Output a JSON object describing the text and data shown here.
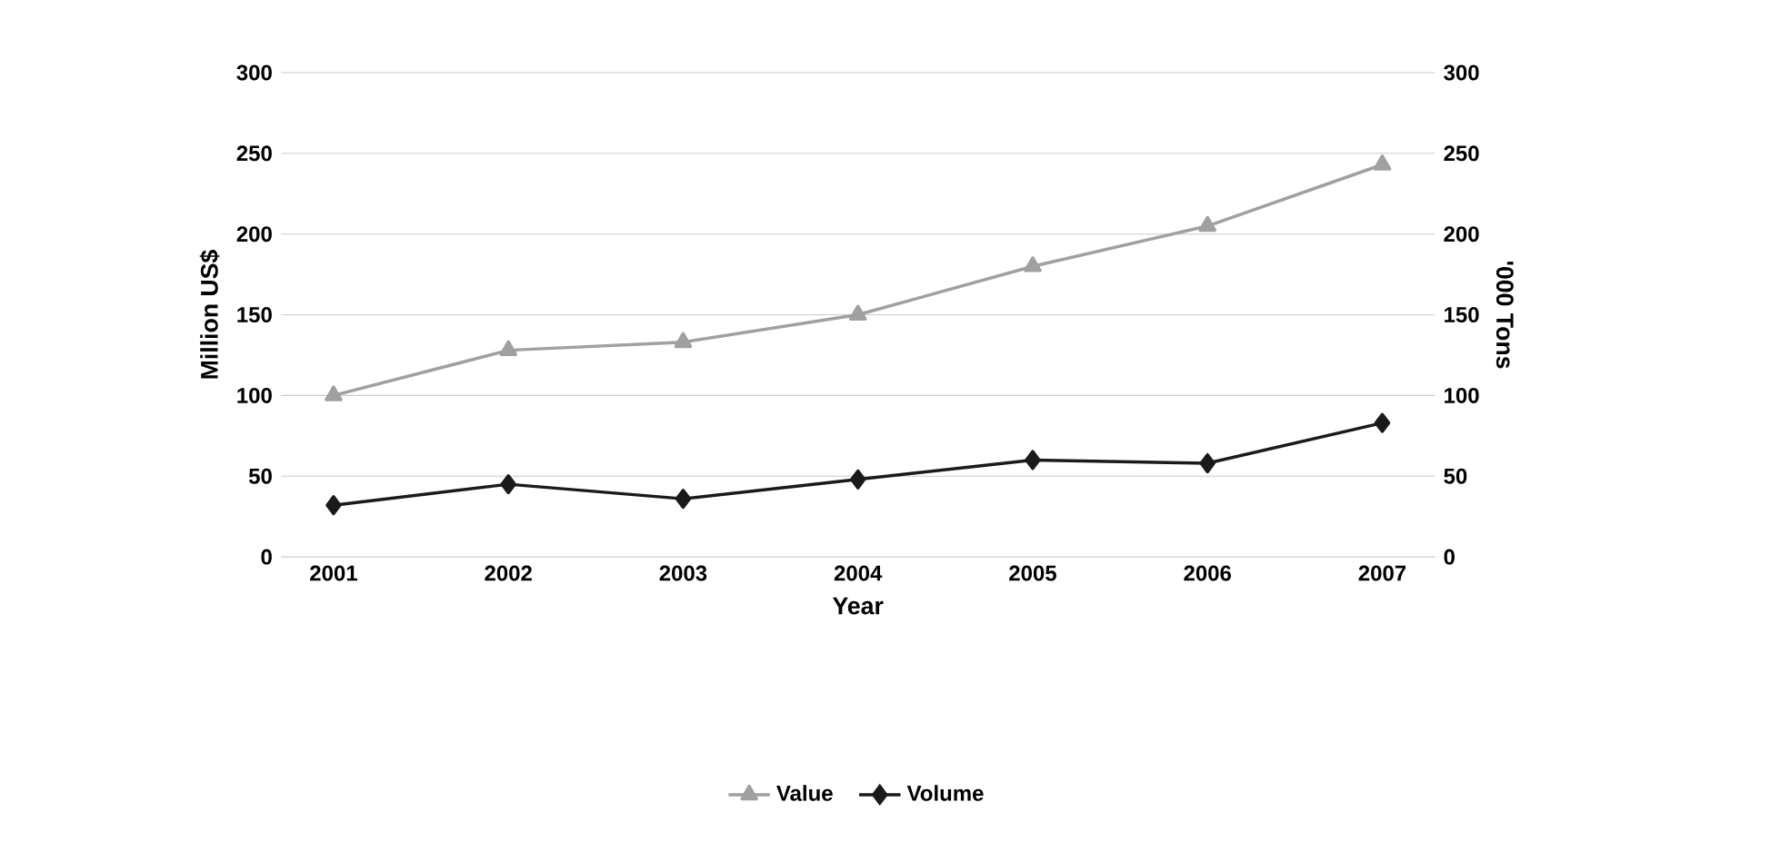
{
  "chart_data": {
    "type": "line",
    "xlabel": "Year",
    "ylabel": "Million US$",
    "y2label": "'000 Tons",
    "categories": [
      "2001",
      "2002",
      "2003",
      "2004",
      "2005",
      "2006",
      "2007"
    ],
    "series": [
      {
        "name": "Value",
        "color": "#a0a0a0",
        "marker": "triangle",
        "values": [
          100,
          128,
          133,
          150,
          180,
          205,
          243
        ]
      },
      {
        "name": "Volume",
        "color": "#1a1a1a",
        "marker": "diamond",
        "axis": "y2",
        "values": [
          32,
          45,
          36,
          48,
          60,
          58,
          83
        ]
      }
    ],
    "ylim": [
      0,
      300
    ],
    "yticks": [
      0,
      50,
      100,
      150,
      200,
      250,
      300
    ],
    "y2lim": [
      0,
      300
    ],
    "y2ticks": [
      0,
      50,
      100,
      150,
      200,
      250,
      300
    ],
    "grid": "y",
    "legend": "bottom",
    "line_style": "solid"
  }
}
